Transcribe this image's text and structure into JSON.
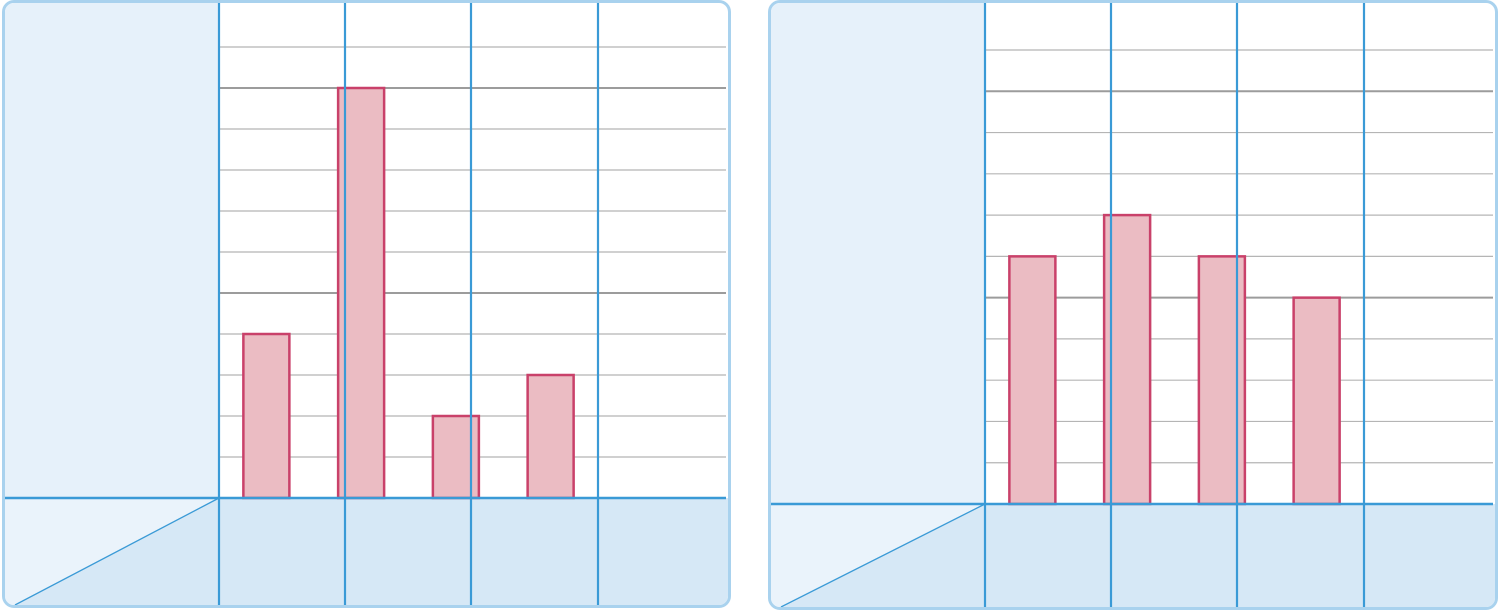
{
  "colors": {
    "panel_border": "#a9d2ee",
    "side_fill": "#e6f1fa",
    "bottom_fill": "#d6e8f6",
    "corner_light": "#eaf3fb",
    "axis_blue": "#3a9ad6",
    "grid_minor": "#b5b5b5",
    "grid_major": "#9c9c9c",
    "bar_fill": "#ebbcc3",
    "bar_stroke": "#c9416a"
  },
  "chart_data": [
    {
      "type": "bar",
      "title": "",
      "xlabel": "",
      "ylabel": "",
      "categories": [
        "",
        "",
        "",
        ""
      ],
      "values": [
        4,
        10,
        2,
        3
      ],
      "ylim": [
        0,
        11
      ],
      "grid": true,
      "major_grid_every": 5
    },
    {
      "type": "bar",
      "title": "",
      "xlabel": "",
      "ylabel": "",
      "categories": [
        "",
        "",
        "",
        ""
      ],
      "values": [
        6,
        7,
        6,
        5
      ],
      "ylim": [
        0,
        11
      ],
      "grid": true,
      "major_grid_every": 5
    }
  ]
}
